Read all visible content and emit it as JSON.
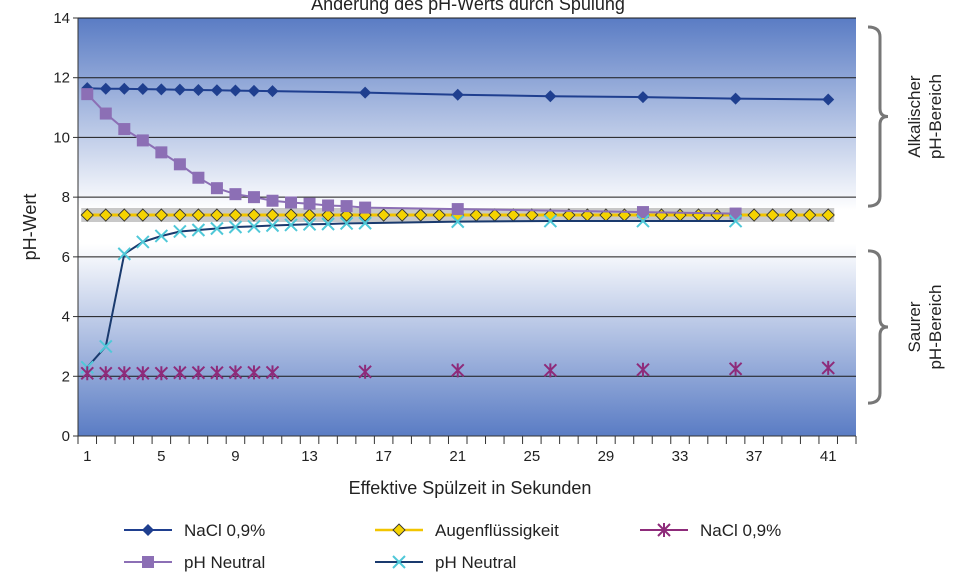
{
  "chart_data": {
    "type": "line",
    "title": "Änderung des pH-Werts durch Spülung",
    "xlabel": "Effektive Spülzeit in Sekunden",
    "ylabel": "pH-Wert",
    "xlim": [
      0,
      42
    ],
    "ylim": [
      0,
      14
    ],
    "x_tick_labels": [
      "1",
      "5",
      "9",
      "13",
      "17",
      "21",
      "25",
      "29",
      "33",
      "37",
      "41"
    ],
    "y_ticks": [
      0,
      2,
      4,
      6,
      8,
      10,
      12,
      14
    ],
    "grid": "horizontal",
    "series": [
      {
        "name": "NaCl  0,9%",
        "color": "#1f3f8f",
        "marker": "diamond",
        "line": true,
        "x": [
          1,
          2,
          3,
          4,
          5,
          6,
          7,
          8,
          9,
          10,
          11,
          16,
          21,
          26,
          31,
          36,
          41
        ],
        "y": [
          11.65,
          11.63,
          11.63,
          11.62,
          11.61,
          11.6,
          11.59,
          11.58,
          11.57,
          11.56,
          11.55,
          11.5,
          11.43,
          11.38,
          11.35,
          11.3,
          11.27
        ]
      },
      {
        "name": "pH Neutral",
        "color": "#8c6fb5",
        "marker": "square",
        "line": true,
        "x": [
          1,
          2,
          3,
          4,
          5,
          6,
          7,
          8,
          9,
          10,
          11,
          12,
          13,
          14,
          15,
          16,
          21,
          31,
          36
        ],
        "y": [
          11.45,
          10.8,
          10.28,
          9.9,
          9.5,
          9.1,
          8.65,
          8.3,
          8.1,
          8.0,
          7.88,
          7.82,
          7.78,
          7.72,
          7.7,
          7.65,
          7.6,
          7.5,
          7.45
        ]
      },
      {
        "name": "Augenflüssigkeit",
        "color": "#f2c500",
        "marker": "diamond-yellow",
        "line": true,
        "x": [
          1,
          2,
          3,
          4,
          5,
          6,
          7,
          8,
          9,
          10,
          11,
          12,
          13,
          14,
          15,
          16,
          17,
          18,
          19,
          20,
          21,
          22,
          23,
          24,
          25,
          26,
          27,
          28,
          29,
          30,
          31,
          32,
          33,
          34,
          35,
          36,
          37,
          38,
          39,
          40,
          41
        ],
        "y": [
          7.4,
          7.4,
          7.4,
          7.4,
          7.4,
          7.4,
          7.4,
          7.4,
          7.4,
          7.4,
          7.4,
          7.4,
          7.4,
          7.4,
          7.4,
          7.4,
          7.4,
          7.4,
          7.4,
          7.4,
          7.4,
          7.4,
          7.4,
          7.4,
          7.4,
          7.4,
          7.4,
          7.4,
          7.4,
          7.4,
          7.4,
          7.4,
          7.4,
          7.4,
          7.4,
          7.4,
          7.4,
          7.4,
          7.4,
          7.4,
          7.4
        ]
      },
      {
        "name": "pH Neutral",
        "color": "#1a3a6e",
        "marker": "x",
        "line": true,
        "x": [
          1,
          2,
          3,
          4,
          5,
          6,
          7,
          8,
          9,
          10,
          11,
          12,
          13,
          14,
          15,
          16,
          21,
          26,
          31,
          36
        ],
        "y": [
          2.3,
          3.0,
          6.1,
          6.5,
          6.7,
          6.85,
          6.9,
          6.95,
          7.0,
          7.02,
          7.05,
          7.07,
          7.09,
          7.1,
          7.12,
          7.13,
          7.18,
          7.2,
          7.2,
          7.2
        ]
      },
      {
        "name": "NaCl  0,9%",
        "color": "#8e2b7a",
        "marker": "asterisk",
        "line": false,
        "x": [
          1,
          2,
          3,
          4,
          5,
          6,
          7,
          8,
          9,
          10,
          11,
          16,
          21,
          26,
          31,
          36,
          41
        ],
        "y": [
          2.1,
          2.1,
          2.1,
          2.1,
          2.1,
          2.12,
          2.12,
          2.12,
          2.13,
          2.13,
          2.13,
          2.15,
          2.2,
          2.2,
          2.22,
          2.25,
          2.28
        ]
      }
    ],
    "legend": {
      "placement": "bottom",
      "order": [
        0,
        2,
        4,
        1,
        3
      ]
    },
    "annotations": [
      {
        "text": [
          "Alkalischer",
          "pH-Bereich"
        ],
        "range": [
          7.7,
          13.7
        ]
      },
      {
        "text": [
          "Saurer",
          "pH-Bereich"
        ],
        "range": [
          1.1,
          6.2
        ]
      }
    ],
    "colors": {
      "background_top": "#5a7cc4",
      "background_mid": "#ffffff",
      "background_bottom": "#5a7cc4"
    }
  }
}
